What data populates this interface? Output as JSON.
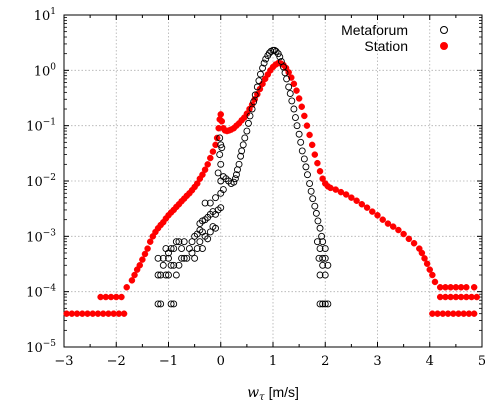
{
  "chart_data": {
    "type": "scatter",
    "title": "",
    "xlabel_symbol": "w",
    "xlabel_subscript": "τ",
    "xlabel_unit": "[m/s]",
    "ylabel": "",
    "xlim": [
      -3,
      5
    ],
    "ylim_log10": [
      -5,
      1
    ],
    "y_scale": "log",
    "grid": true,
    "legend_position": "top-right",
    "x_ticks": [
      {
        "value": -3,
        "label": "−3"
      },
      {
        "value": -2,
        "label": "−2"
      },
      {
        "value": -1,
        "label": "−1"
      },
      {
        "value": 0,
        "label": "0"
      },
      {
        "value": 1,
        "label": "1"
      },
      {
        "value": 2,
        "label": "2"
      },
      {
        "value": 3,
        "label": "3"
      },
      {
        "value": 4,
        "label": "4"
      },
      {
        "value": 5,
        "label": "5"
      }
    ],
    "y_ticks": [
      {
        "exp": -5,
        "base": "10",
        "sup": "−5"
      },
      {
        "exp": -4,
        "base": "10",
        "sup": "−4"
      },
      {
        "exp": -3,
        "base": "10",
        "sup": "−3"
      },
      {
        "exp": -2,
        "base": "10",
        "sup": "−2"
      },
      {
        "exp": -1,
        "base": "10",
        "sup": "−1"
      },
      {
        "exp": 0,
        "base": "10",
        "sup": "0"
      },
      {
        "exp": 1,
        "base": "10",
        "sup": "1"
      }
    ],
    "series": [
      {
        "name": "Metaforum",
        "marker": "open-circle",
        "color": "#000000",
        "points": [
          [
            -1.2,
            6e-05
          ],
          [
            -1.15,
            6e-05
          ],
          [
            -0.95,
            6e-05
          ],
          [
            -0.9,
            6e-05
          ],
          [
            -1.2,
            0.0002
          ],
          [
            -1.15,
            0.0002
          ],
          [
            -1.1,
            0.0003
          ],
          [
            -1.05,
            0.0002
          ],
          [
            -1.0,
            0.0002
          ],
          [
            -1.2,
            0.0004
          ],
          [
            -1.1,
            0.0004
          ],
          [
            -1.0,
            0.0004
          ],
          [
            -0.95,
            0.0003
          ],
          [
            -0.9,
            0.0003
          ],
          [
            -0.85,
            0.0002
          ],
          [
            -0.8,
            0.0003
          ],
          [
            -0.75,
            0.0004
          ],
          [
            -0.7,
            0.0004
          ],
          [
            -0.65,
            0.0004
          ],
          [
            -1.05,
            0.0006
          ],
          [
            -1.0,
            0.0005
          ],
          [
            -0.95,
            0.0006
          ],
          [
            -0.9,
            0.0006
          ],
          [
            -0.85,
            0.0008
          ],
          [
            -0.8,
            0.0008
          ],
          [
            -0.75,
            0.0006
          ],
          [
            -0.7,
            0.0008
          ],
          [
            -0.6,
            0.0006
          ],
          [
            -0.55,
            0.0005
          ],
          [
            -0.5,
            0.0004
          ],
          [
            -0.45,
            0.0006
          ],
          [
            -0.4,
            0.0008
          ],
          [
            -0.35,
            0.0006
          ],
          [
            -0.55,
            0.0008
          ],
          [
            -0.5,
            0.001
          ],
          [
            -0.45,
            0.0011
          ],
          [
            -0.4,
            0.0013
          ],
          [
            -0.35,
            0.0012
          ],
          [
            -0.3,
            0.001
          ],
          [
            -0.25,
            0.0009
          ],
          [
            -0.2,
            0.0012
          ],
          [
            -0.15,
            0.0015
          ],
          [
            -0.1,
            0.0014
          ],
          [
            -0.4,
            0.0017
          ],
          [
            -0.35,
            0.0019
          ],
          [
            -0.3,
            0.002
          ],
          [
            -0.25,
            0.0022
          ],
          [
            -0.2,
            0.0025
          ],
          [
            -0.15,
            0.0028
          ],
          [
            -0.1,
            0.0025
          ],
          [
            -0.05,
            0.003
          ],
          [
            0.0,
            0.0033
          ],
          [
            -0.3,
            0.004
          ],
          [
            -0.2,
            0.004
          ],
          [
            -0.1,
            0.005
          ],
          [
            0.0,
            0.006
          ],
          [
            0.05,
            0.007
          ],
          [
            0.0,
            0.01
          ],
          [
            0.05,
            0.012
          ],
          [
            0.1,
            0.011
          ],
          [
            0.15,
            0.01
          ],
          [
            0.2,
            0.009
          ],
          [
            0.25,
            0.0095
          ],
          [
            -0.05,
            0.014
          ],
          [
            0.0,
            0.02
          ],
          [
            -0.02,
            0.03
          ],
          [
            0.0,
            0.045
          ],
          [
            -0.02,
            0.06
          ],
          [
            0.02,
            0.04
          ],
          [
            0.28,
            0.011
          ],
          [
            0.3,
            0.013
          ],
          [
            0.32,
            0.016
          ],
          [
            0.35,
            0.02
          ],
          [
            0.38,
            0.028
          ],
          [
            0.4,
            0.035
          ],
          [
            0.43,
            0.045
          ],
          [
            0.46,
            0.06
          ],
          [
            0.5,
            0.08
          ],
          [
            0.53,
            0.11
          ],
          [
            0.56,
            0.15
          ],
          [
            0.6,
            0.2
          ],
          [
            0.63,
            0.27
          ],
          [
            0.66,
            0.36
          ],
          [
            0.7,
            0.5
          ],
          [
            0.73,
            0.65
          ],
          [
            0.76,
            0.85
          ],
          [
            0.8,
            1.1
          ],
          [
            0.83,
            1.35
          ],
          [
            0.86,
            1.6
          ],
          [
            0.9,
            1.85
          ],
          [
            0.93,
            2.05
          ],
          [
            0.96,
            2.2
          ],
          [
            1.0,
            2.3
          ],
          [
            1.03,
            2.3
          ],
          [
            1.06,
            2.2
          ],
          [
            1.1,
            2.0
          ],
          [
            1.13,
            1.75
          ],
          [
            1.16,
            1.45
          ],
          [
            1.2,
            1.15
          ],
          [
            1.23,
            0.9
          ],
          [
            1.26,
            0.7
          ],
          [
            1.3,
            0.5
          ],
          [
            1.33,
            0.38
          ],
          [
            1.36,
            0.28
          ],
          [
            1.4,
            0.2
          ],
          [
            1.43,
            0.14
          ],
          [
            1.46,
            0.1
          ],
          [
            1.5,
            0.07
          ],
          [
            1.53,
            0.05
          ],
          [
            1.56,
            0.035
          ],
          [
            1.6,
            0.025
          ],
          [
            1.63,
            0.018
          ],
          [
            1.66,
            0.013
          ],
          [
            1.7,
            0.009
          ],
          [
            1.73,
            0.0065
          ],
          [
            1.76,
            0.0048
          ],
          [
            1.8,
            0.0035
          ],
          [
            1.83,
            0.0026
          ],
          [
            1.86,
            0.0019
          ],
          [
            1.9,
            0.0014
          ],
          [
            1.93,
            0.001
          ],
          [
            1.85,
            0.0008
          ],
          [
            1.9,
            0.0006
          ],
          [
            1.95,
            0.0008
          ],
          [
            2.0,
            0.0006
          ],
          [
            1.88,
            0.0004
          ],
          [
            1.95,
            0.0004
          ],
          [
            2.0,
            0.0004
          ],
          [
            1.9,
            0.0002
          ],
          [
            1.95,
            0.0003
          ],
          [
            2.05,
            0.0003
          ],
          [
            2.0,
            0.0002
          ],
          [
            1.9,
            6e-05
          ],
          [
            1.95,
            6e-05
          ],
          [
            2.0,
            6e-05
          ],
          [
            2.05,
            6e-05
          ]
        ]
      },
      {
        "name": "Station",
        "marker": "filled-circle",
        "color": "#ff0000",
        "points": [
          [
            -2.95,
            4e-05
          ],
          [
            -2.85,
            4e-05
          ],
          [
            -2.75,
            4e-05
          ],
          [
            -2.65,
            4e-05
          ],
          [
            -2.55,
            4e-05
          ],
          [
            -2.45,
            4e-05
          ],
          [
            -2.35,
            4e-05
          ],
          [
            -2.25,
            4e-05
          ],
          [
            -2.15,
            4e-05
          ],
          [
            -2.05,
            4e-05
          ],
          [
            -1.95,
            4e-05
          ],
          [
            -1.85,
            4e-05
          ],
          [
            -2.3,
            8e-05
          ],
          [
            -2.2,
            8e-05
          ],
          [
            -2.1,
            8e-05
          ],
          [
            -2.0,
            8e-05
          ],
          [
            -1.9,
            8e-05
          ],
          [
            -1.8,
            0.00012
          ],
          [
            -1.7,
            0.00016
          ],
          [
            -1.65,
            0.0002
          ],
          [
            -1.6,
            0.00025
          ],
          [
            -1.55,
            0.0003
          ],
          [
            -1.5,
            0.00038
          ],
          [
            -1.45,
            0.00048
          ],
          [
            -1.4,
            0.0006
          ],
          [
            -1.35,
            0.0008
          ],
          [
            -1.3,
            0.001
          ],
          [
            -1.25,
            0.0012
          ],
          [
            -1.2,
            0.0014
          ],
          [
            -1.15,
            0.0016
          ],
          [
            -1.1,
            0.0018
          ],
          [
            -1.05,
            0.0021
          ],
          [
            -1.0,
            0.0024
          ],
          [
            -0.95,
            0.0027
          ],
          [
            -0.9,
            0.003
          ],
          [
            -0.85,
            0.0034
          ],
          [
            -0.8,
            0.0038
          ],
          [
            -0.75,
            0.0043
          ],
          [
            -0.7,
            0.0048
          ],
          [
            -0.65,
            0.0054
          ],
          [
            -0.6,
            0.006
          ],
          [
            -0.55,
            0.0068
          ],
          [
            -0.5,
            0.0078
          ],
          [
            -0.45,
            0.009
          ],
          [
            -0.4,
            0.011
          ],
          [
            -0.35,
            0.013
          ],
          [
            -0.3,
            0.016
          ],
          [
            -0.25,
            0.02
          ],
          [
            -0.2,
            0.026
          ],
          [
            -0.15,
            0.034
          ],
          [
            -0.1,
            0.045
          ],
          [
            -0.07,
            0.06
          ],
          [
            -0.04,
            0.09
          ],
          [
            -0.02,
            0.13
          ],
          [
            0.0,
            0.16
          ],
          [
            0.02,
            0.12
          ],
          [
            0.05,
            0.09
          ],
          [
            0.08,
            0.082
          ],
          [
            0.12,
            0.08
          ],
          [
            0.16,
            0.082
          ],
          [
            0.2,
            0.085
          ],
          [
            0.25,
            0.09
          ],
          [
            0.3,
            0.1
          ],
          [
            0.35,
            0.11
          ],
          [
            0.4,
            0.125
          ],
          [
            0.45,
            0.14
          ],
          [
            0.5,
            0.165
          ],
          [
            0.55,
            0.2
          ],
          [
            0.6,
            0.24
          ],
          [
            0.65,
            0.3
          ],
          [
            0.7,
            0.37
          ],
          [
            0.75,
            0.46
          ],
          [
            0.8,
            0.57
          ],
          [
            0.85,
            0.7
          ],
          [
            0.9,
            0.84
          ],
          [
            0.95,
            1.0
          ],
          [
            1.0,
            1.15
          ],
          [
            1.05,
            1.27
          ],
          [
            1.1,
            1.35
          ],
          [
            1.15,
            1.33
          ],
          [
            1.2,
            1.25
          ],
          [
            1.25,
            1.1
          ],
          [
            1.3,
            0.92
          ],
          [
            1.35,
            0.74
          ],
          [
            1.4,
            0.57
          ],
          [
            1.45,
            0.43
          ],
          [
            1.5,
            0.31
          ],
          [
            1.55,
            0.22
          ],
          [
            1.6,
            0.15
          ],
          [
            1.65,
            0.1
          ],
          [
            1.7,
            0.068
          ],
          [
            1.75,
            0.045
          ],
          [
            1.8,
            0.03
          ],
          [
            1.85,
            0.021
          ],
          [
            1.9,
            0.015
          ],
          [
            1.95,
            0.011
          ],
          [
            2.0,
            0.009
          ],
          [
            2.05,
            0.008
          ],
          [
            2.1,
            0.0075
          ],
          [
            2.2,
            0.007
          ],
          [
            2.3,
            0.0063
          ],
          [
            2.4,
            0.0057
          ],
          [
            2.5,
            0.005
          ],
          [
            2.6,
            0.0044
          ],
          [
            2.7,
            0.0038
          ],
          [
            2.8,
            0.0033
          ],
          [
            2.9,
            0.0028
          ],
          [
            3.0,
            0.0024
          ],
          [
            3.1,
            0.002
          ],
          [
            3.2,
            0.0017
          ],
          [
            3.3,
            0.0015
          ],
          [
            3.4,
            0.0013
          ],
          [
            3.5,
            0.0011
          ],
          [
            3.6,
            0.0009
          ],
          [
            3.7,
            0.00075
          ],
          [
            3.8,
            0.0006
          ],
          [
            3.85,
            0.0005
          ],
          [
            3.9,
            0.0004
          ],
          [
            3.95,
            0.00032
          ],
          [
            4.0,
            0.00025
          ],
          [
            4.05,
            0.0002
          ],
          [
            4.1,
            0.00015
          ],
          [
            4.2,
            0.00012
          ],
          [
            4.3,
            0.00012
          ],
          [
            4.4,
            0.00012
          ],
          [
            4.5,
            0.00012
          ],
          [
            4.6,
            0.00012
          ],
          [
            4.7,
            0.00012
          ],
          [
            4.85,
            0.00012
          ],
          [
            4.2,
            8e-05
          ],
          [
            4.3,
            8e-05
          ],
          [
            4.4,
            8e-05
          ],
          [
            4.5,
            8e-05
          ],
          [
            4.6,
            8e-05
          ],
          [
            4.7,
            8e-05
          ],
          [
            4.8,
            8e-05
          ],
          [
            4.9,
            8e-05
          ],
          [
            4.05,
            4e-05
          ],
          [
            4.15,
            4e-05
          ],
          [
            4.25,
            4e-05
          ],
          [
            4.35,
            4e-05
          ],
          [
            4.45,
            4e-05
          ],
          [
            4.55,
            4e-05
          ],
          [
            4.65,
            4e-05
          ],
          [
            4.75,
            4e-05
          ],
          [
            4.85,
            4e-05
          ]
        ]
      }
    ]
  },
  "colors": {
    "metaforum": "#000000",
    "station": "#ff0000",
    "grid": "#b0b0b0",
    "axis": "#000000"
  }
}
